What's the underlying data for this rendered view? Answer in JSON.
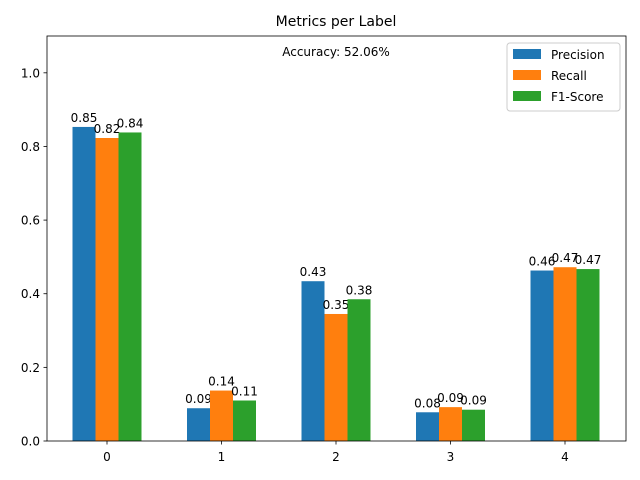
{
  "chart_data": {
    "type": "bar",
    "title": "Metrics per Label",
    "xlabel": "",
    "ylabel": "",
    "categories": [
      "0",
      "1",
      "2",
      "3",
      "4"
    ],
    "ylim": [
      0,
      1.1
    ],
    "yticks": [
      "0.0",
      "0.2",
      "0.4",
      "0.6",
      "0.8",
      "1.0"
    ],
    "grid": false,
    "legend_position": "top-right",
    "annotation": "Accuracy: 52.06%",
    "series": [
      {
        "name": "Precision",
        "color": "#1f77b4",
        "values": [
          0.853,
          0.089,
          0.434,
          0.078,
          0.463
        ],
        "labels": [
          "0.85",
          "0.09",
          "0.43",
          "0.08",
          "0.46"
        ]
      },
      {
        "name": "Recall",
        "color": "#ff7f0e",
        "values": [
          0.823,
          0.137,
          0.345,
          0.092,
          0.472
        ],
        "labels": [
          "0.82",
          "0.14",
          "0.35",
          "0.09",
          "0.47"
        ]
      },
      {
        "name": "F1-Score",
        "color": "#2ca02c",
        "values": [
          0.838,
          0.11,
          0.385,
          0.085,
          0.467
        ],
        "labels": [
          "0.84",
          "0.11",
          "0.38",
          "0.09",
          "0.47"
        ]
      }
    ]
  }
}
